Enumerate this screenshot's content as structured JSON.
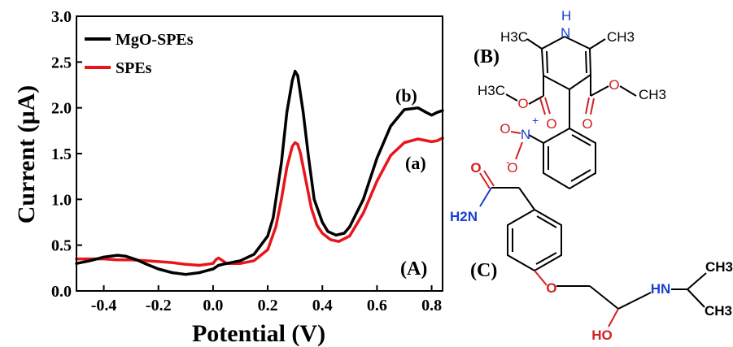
{
  "chart_data": {
    "type": "line",
    "panel_label": "(A)",
    "xlabel": "Potential (V)",
    "ylabel": "Current (μA)",
    "xlim": [
      -0.5,
      0.84
    ],
    "ylim": [
      0.0,
      3.0
    ],
    "xticks": [
      "-0.4",
      "-0.2",
      "0.0",
      "0.2",
      "0.4",
      "0.6",
      "0.8"
    ],
    "xtick_values": [
      -0.4,
      -0.2,
      0.0,
      0.2,
      0.4,
      0.6,
      0.8
    ],
    "yticks": [
      "0.0",
      "0.5",
      "1.0",
      "1.5",
      "2.0",
      "2.5",
      "3.0"
    ],
    "ytick_values": [
      0.0,
      0.5,
      1.0,
      1.5,
      2.0,
      2.5,
      3.0
    ],
    "grid": false,
    "legend_position": "top-left",
    "series": [
      {
        "name": "MgO-SPEs",
        "curve_label": "(b)",
        "color": "#000000",
        "x": [
          -0.5,
          -0.45,
          -0.4,
          -0.35,
          -0.32,
          -0.28,
          -0.25,
          -0.2,
          -0.15,
          -0.1,
          -0.05,
          0.0,
          0.02,
          0.05,
          0.1,
          0.15,
          0.2,
          0.22,
          0.25,
          0.27,
          0.29,
          0.3,
          0.31,
          0.33,
          0.35,
          0.37,
          0.4,
          0.42,
          0.45,
          0.48,
          0.5,
          0.55,
          0.6,
          0.65,
          0.7,
          0.75,
          0.78,
          0.8,
          0.82,
          0.84
        ],
        "y": [
          0.3,
          0.33,
          0.37,
          0.39,
          0.38,
          0.34,
          0.3,
          0.24,
          0.2,
          0.18,
          0.2,
          0.24,
          0.28,
          0.3,
          0.33,
          0.4,
          0.6,
          0.8,
          1.4,
          1.95,
          2.3,
          2.4,
          2.35,
          1.95,
          1.45,
          1.0,
          0.75,
          0.65,
          0.61,
          0.63,
          0.7,
          1.0,
          1.45,
          1.8,
          1.98,
          2.0,
          1.95,
          1.92,
          1.95,
          1.97
        ]
      },
      {
        "name": "SPEs",
        "curve_label": "(a)",
        "color": "#e8161b",
        "x": [
          -0.5,
          -0.45,
          -0.4,
          -0.35,
          -0.3,
          -0.25,
          -0.2,
          -0.15,
          -0.1,
          -0.05,
          0.0,
          0.01,
          0.02,
          0.03,
          0.05,
          0.1,
          0.15,
          0.2,
          0.23,
          0.25,
          0.27,
          0.29,
          0.3,
          0.31,
          0.32,
          0.34,
          0.36,
          0.38,
          0.4,
          0.43,
          0.46,
          0.5,
          0.55,
          0.6,
          0.65,
          0.7,
          0.75,
          0.8,
          0.82,
          0.84
        ],
        "y": [
          0.35,
          0.35,
          0.35,
          0.34,
          0.34,
          0.33,
          0.32,
          0.31,
          0.29,
          0.28,
          0.3,
          0.34,
          0.36,
          0.34,
          0.3,
          0.3,
          0.33,
          0.45,
          0.7,
          1.0,
          1.35,
          1.58,
          1.62,
          1.6,
          1.5,
          1.2,
          0.9,
          0.72,
          0.63,
          0.56,
          0.54,
          0.6,
          0.85,
          1.2,
          1.48,
          1.62,
          1.66,
          1.63,
          1.64,
          1.67
        ]
      }
    ]
  },
  "structures": {
    "nifedipine": {
      "label": "(B)",
      "atoms": {
        "nh": "H",
        "n_top": "N",
        "ch3_left": "H3C",
        "ch3_right": "CH3",
        "o_left_carbonyl": "O",
        "o_left_ester": "O",
        "ch3_ester_left": "H3C",
        "o_right_ester": "O",
        "o_right_carbonyl": "O",
        "ch3_ester_right": "CH3",
        "nitro_n": "N",
        "nitro_charge": "+",
        "nitro_o1": "O",
        "nitro_o2": "O",
        "nitro_charge_o": "-"
      }
    },
    "atenolol": {
      "label": "(C)",
      "atoms": {
        "amide_o": "O",
        "amide_n": "H2N",
        "ether_o": "O",
        "amine": "HN",
        "ch3_top": "CH3",
        "ch3_bottom": "CH3",
        "hydroxyl": "HO"
      }
    }
  }
}
